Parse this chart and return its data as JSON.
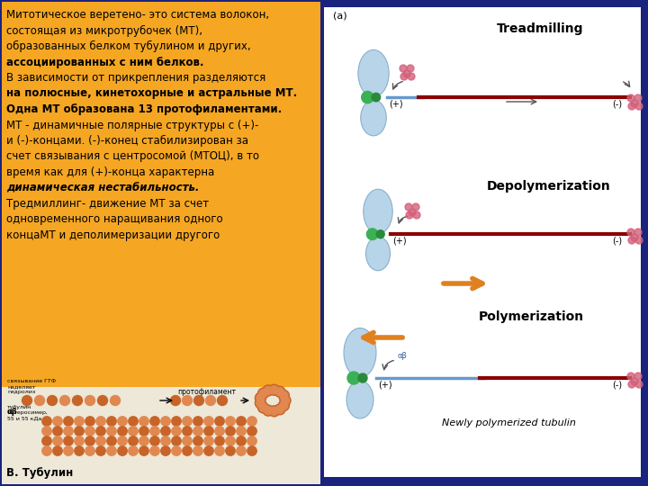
{
  "bg_color": "#1a237e",
  "left_panel_color": "#f5a623",
  "right_panel_color": "#ffffff",
  "text_color": "#000000",
  "main_text_lines": [
    {
      "text": "Митотическое веретено- это система волокон,",
      "bold": false,
      "italic": false
    },
    {
      "text": "состоящая из микротрубочек (МТ),",
      "bold": false,
      "italic": false
    },
    {
      "text": "образованных белком тубулином и других,",
      "bold": false,
      "italic": false
    },
    {
      "text": "ассоциированных с ним белков.",
      "bold": true,
      "italic": false
    },
    {
      "text": "В зависимости от прикрепления разделяются",
      "bold": false,
      "italic": false
    },
    {
      "text": "на полюсные, кинетохорные и астральные МТ.",
      "bold": true,
      "italic": false
    },
    {
      "text": "Одна МТ образована 13 протофиламентами.",
      "bold": true,
      "italic": false
    },
    {
      "text": "МТ - динамичные полярные структуры с (+)-",
      "bold": false,
      "italic": false
    },
    {
      "text": "и (-)-концами. (-)-конец стабилизирован за",
      "bold": false,
      "italic": false
    },
    {
      "text": "счет связывания с центросомой (МТОЦ), в то",
      "bold": false,
      "italic": false
    },
    {
      "text": "время как для (+)-конца характерна",
      "bold": false,
      "italic": false
    },
    {
      "text": "динамическая нестабильность.",
      "bold": true,
      "italic": true
    },
    {
      "text": "Тредмиллинг- движение МТ за счет",
      "bold": false,
      "italic": false
    },
    {
      "text": "одновременного наращивания одного",
      "bold": false,
      "italic": false
    },
    {
      "text": "концаМТ и деполимеризации другого",
      "bold": false,
      "italic": false
    }
  ],
  "bottom_label": "В. Тубулин",
  "right_label": "(a)",
  "treadmilling_label": "Treadmilling",
  "depolymerization_label": "Depolymerization",
  "polymerization_label": "Polymerization",
  "newly_label": "Newly polymerized tubulin",
  "font_size_main": 8.5,
  "chrom_color": "#b8d4e8",
  "chrom_edge": "#8ab0cc",
  "green1": "#3cb054",
  "green2": "#2a8a3a",
  "mt_red": "#8b0000",
  "mt_blue": "#6699cc",
  "mt_grey": "#aaaaaa",
  "pink": "#d4607a",
  "orange_arrow": "#e08020",
  "strip_bg": "#ede8d8"
}
